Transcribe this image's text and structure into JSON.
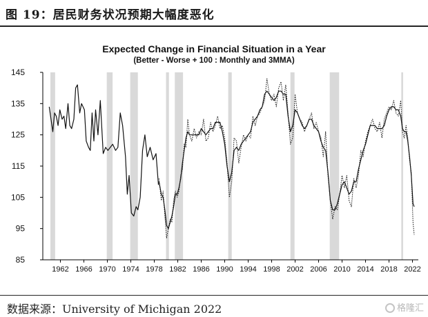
{
  "figure": {
    "title": "图 19：居民财务状况预期大幅度恶化",
    "source": "数据来源：University of Michigan 2022",
    "watermark": "格隆汇"
  },
  "chart_data": {
    "type": "line",
    "title": "Expected Change in Financial Situation in a Year",
    "subtitle": "(Better - Worse + 100 : Monthly and 3MMA)",
    "xlabel": "",
    "ylabel": "",
    "ylim": [
      85,
      145
    ],
    "xlim": [
      1959,
      2023
    ],
    "yticks": [
      85,
      95,
      105,
      115,
      125,
      135,
      145
    ],
    "xticks": [
      1962,
      1966,
      1970,
      1974,
      1978,
      1982,
      1986,
      1990,
      1994,
      1998,
      2002,
      2006,
      2010,
      2014,
      2018,
      2022
    ],
    "recession_shading": [
      [
        1960.3,
        1961.1
      ],
      [
        1969.9,
        1970.9
      ],
      [
        1973.9,
        1975.2
      ],
      [
        1980.0,
        1980.5
      ],
      [
        1981.5,
        1982.9
      ],
      [
        1990.6,
        1991.2
      ],
      [
        2001.2,
        2001.9
      ],
      [
        2007.9,
        2009.5
      ],
      [
        2020.1,
        2020.4
      ]
    ],
    "series": [
      {
        "style": "solid",
        "x": [
          1960.1,
          1960.4,
          1960.7,
          1961.0,
          1961.3,
          1961.6,
          1961.9,
          1962.3,
          1962.6,
          1962.9,
          1963.3,
          1963.6,
          1963.9,
          1964.3,
          1964.6,
          1964.9,
          1965.3,
          1965.6,
          1966.1,
          1966.4,
          1966.8,
          1967.1,
          1967.4,
          1967.7,
          1968.0,
          1968.4,
          1968.8,
          1969.3,
          1969.7,
          1970.1,
          1970.5,
          1970.9,
          1971.4,
          1971.8,
          1972.2,
          1972.6,
          1973.1,
          1973.4,
          1973.7,
          1974.1,
          1974.5,
          1974.9,
          1975.2,
          1975.6,
          1976.0,
          1976.4,
          1976.8,
          1977.3,
          1977.8,
          1978.3,
          1978.7
        ],
        "values": [
          134,
          130,
          126,
          132,
          131,
          128,
          133,
          130,
          131,
          127,
          135,
          128,
          127,
          130,
          140,
          141,
          132,
          135,
          133,
          123,
          121,
          120,
          132,
          123,
          133,
          125,
          136,
          119,
          121,
          120,
          121,
          122,
          120,
          121,
          132,
          128,
          118,
          106,
          112,
          100,
          99,
          102,
          101,
          105,
          120,
          125,
          118,
          121,
          117,
          119,
          109
        ]
      },
      {
        "style": "dotted",
        "x": [
          1978.8,
          1979.2,
          1979.5,
          1979.8,
          1980.1,
          1980.4,
          1980.7,
          1981.0,
          1981.3,
          1981.6,
          1981.9,
          1982.2,
          1982.5,
          1982.8,
          1983.1,
          1983.4,
          1983.7,
          1984.0,
          1984.4,
          1984.8,
          1985.2,
          1985.6,
          1986.0,
          1986.4,
          1986.8,
          1987.2,
          1987.6,
          1988.0,
          1988.4,
          1988.8,
          1989.2,
          1989.6,
          1990.0,
          1990.4,
          1990.8,
          1991.2,
          1991.6,
          1992.0,
          1992.4,
          1992.8,
          1993.2,
          1993.6,
          1994.0,
          1994.4,
          1994.8,
          1995.2,
          1995.6,
          1996.0,
          1996.4,
          1996.8,
          1997.2,
          1997.6,
          1998.0,
          1998.4,
          1998.8,
          1999.2,
          1999.6,
          2000.0,
          2000.4,
          2000.8,
          2001.2,
          2001.6,
          2002.0,
          2002.4,
          2002.8,
          2003.2,
          2003.6,
          2004.0,
          2004.4,
          2004.8,
          2005.2,
          2005.6,
          2006.0,
          2006.4,
          2006.8,
          2007.2,
          2007.6,
          2008.0,
          2008.4,
          2008.8,
          2009.2,
          2009.6,
          2010.0,
          2010.4,
          2010.8,
          2011.2,
          2011.6,
          2012.0,
          2012.4,
          2012.8,
          2013.2,
          2013.6,
          2014.0,
          2014.4,
          2014.8,
          2015.2,
          2015.6,
          2016.0,
          2016.4,
          2016.8,
          2017.2,
          2017.6,
          2018.0,
          2018.4,
          2018.8,
          2019.2,
          2019.6,
          2020.0,
          2020.3,
          2020.6,
          2020.9,
          2021.2,
          2021.5,
          2021.8,
          2022.1,
          2022.3
        ],
        "values": [
          111,
          104,
          107,
          99,
          92,
          95,
          98,
          97,
          104,
          107,
          105,
          107,
          112,
          114,
          122,
          121,
          130,
          125,
          123,
          127,
          124,
          126,
          125,
          130,
          123,
          124,
          129,
          126,
          128,
          131,
          127,
          128,
          124,
          116,
          105,
          110,
          124,
          123,
          116,
          121,
          125,
          123,
          125,
          124,
          131,
          128,
          131,
          132,
          134,
          136,
          143,
          138,
          136,
          138,
          134,
          140,
          142,
          136,
          141,
          132,
          122,
          124,
          138,
          132,
          130,
          129,
          126,
          128,
          130,
          132,
          127,
          129,
          126,
          124,
          118,
          126,
          112,
          104,
          98,
          102,
          101,
          106,
          112,
          108,
          112,
          104,
          102,
          111,
          108,
          112,
          120,
          118,
          123,
          126,
          128,
          130,
          127,
          126,
          129,
          124,
          130,
          132,
          134,
          133,
          136,
          132,
          131,
          136,
          126,
          124,
          128,
          124,
          117,
          113,
          97,
          93
        ]
      },
      {
        "style": "solid",
        "x": [
          1978.8,
          1979.2,
          1979.5,
          1979.8,
          1980.1,
          1980.4,
          1980.7,
          1981.0,
          1981.3,
          1981.6,
          1981.9,
          1982.2,
          1982.5,
          1982.8,
          1983.1,
          1983.4,
          1983.7,
          1984.0,
          1984.4,
          1984.8,
          1985.2,
          1985.6,
          1986.0,
          1986.4,
          1986.8,
          1987.2,
          1987.6,
          1988.0,
          1988.4,
          1988.8,
          1989.2,
          1989.6,
          1990.0,
          1990.4,
          1990.8,
          1991.2,
          1991.6,
          1992.0,
          1992.4,
          1992.8,
          1993.2,
          1993.6,
          1994.0,
          1994.4,
          1994.8,
          1995.2,
          1995.6,
          1996.0,
          1996.4,
          1996.8,
          1997.2,
          1997.6,
          1998.0,
          1998.4,
          1998.8,
          1999.2,
          1999.6,
          2000.0,
          2000.4,
          2000.8,
          2001.2,
          2001.6,
          2002.0,
          2002.4,
          2002.8,
          2003.2,
          2003.6,
          2004.0,
          2004.4,
          2004.8,
          2005.2,
          2005.6,
          2006.0,
          2006.4,
          2006.8,
          2007.2,
          2007.6,
          2008.0,
          2008.4,
          2008.8,
          2009.2,
          2009.6,
          2010.0,
          2010.4,
          2010.8,
          2011.2,
          2011.6,
          2012.0,
          2012.4,
          2012.8,
          2013.2,
          2013.6,
          2014.0,
          2014.4,
          2014.8,
          2015.2,
          2015.6,
          2016.0,
          2016.4,
          2016.8,
          2017.2,
          2017.6,
          2018.0,
          2018.4,
          2018.8,
          2019.2,
          2019.6,
          2020.0,
          2020.3,
          2020.6,
          2020.9,
          2021.2,
          2021.5,
          2021.8,
          2022.1,
          2022.3
        ],
        "values": [
          110,
          106,
          105,
          101,
          96,
          95,
          97,
          99,
          102,
          106,
          106,
          108,
          111,
          116,
          120,
          124,
          126,
          125,
          125,
          125,
          125,
          125,
          127,
          126,
          125,
          126,
          127,
          127,
          129,
          129,
          129,
          126,
          122,
          115,
          110,
          113,
          120,
          121,
          120,
          122,
          123,
          124,
          125,
          126,
          129,
          130,
          131,
          133,
          134,
          138,
          139,
          138,
          137,
          136,
          137,
          139,
          139,
          138,
          138,
          131,
          126,
          128,
          133,
          132,
          130,
          128,
          127,
          128,
          130,
          130,
          128,
          127,
          126,
          123,
          121,
          120,
          113,
          104,
          101,
          101,
          103,
          106,
          109,
          110,
          108,
          106,
          107,
          110,
          110,
          114,
          117,
          120,
          122,
          125,
          128,
          128,
          128,
          127,
          127,
          127,
          128,
          131,
          133,
          134,
          134,
          133,
          133,
          131,
          127,
          126,
          126,
          123,
          118,
          112,
          103,
          102
        ]
      }
    ]
  }
}
